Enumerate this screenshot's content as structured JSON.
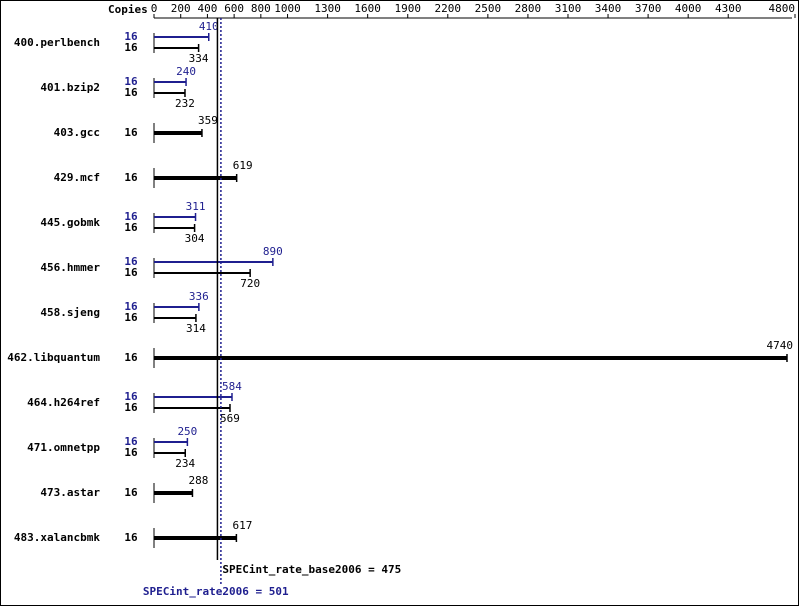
{
  "chart_data": {
    "type": "bar",
    "orientation": "horizontal",
    "copies_label": "Copies",
    "categories": [
      "400.perlbench",
      "401.bzip2",
      "403.gcc",
      "429.mcf",
      "445.gobmk",
      "456.hmmer",
      "458.sjeng",
      "462.libquantum",
      "464.h264ref",
      "471.omnetpp",
      "473.astar",
      "483.xalancbmk"
    ],
    "series": [
      {
        "color": "#1f1f8f",
        "values": [
          410,
          240,
          null,
          null,
          311,
          890,
          336,
          null,
          584,
          250,
          null,
          null
        ],
        "copies": [
          16,
          16,
          null,
          null,
          16,
          16,
          16,
          null,
          16,
          16,
          null,
          null
        ]
      },
      {
        "color": "#000000",
        "values": [
          334,
          232,
          359,
          619,
          304,
          720,
          314,
          4740,
          569,
          234,
          288,
          617
        ],
        "copies": [
          16,
          16,
          16,
          16,
          16,
          16,
          16,
          16,
          16,
          16,
          16,
          16
        ]
      }
    ],
    "xlim": [
      0,
      4800
    ],
    "xticks": [
      0,
      200,
      400,
      600,
      800,
      1000,
      1300,
      1600,
      1900,
      2200,
      2500,
      2800,
      3100,
      3400,
      3700,
      4000,
      4300,
      4800
    ],
    "base_line": {
      "value": 475,
      "label": "SPECint_rate_base2006 = 475",
      "color": "#000000"
    },
    "peak_line": {
      "value": 501,
      "label": "SPECint_rate2006 = 501",
      "color": "#1f1f8f"
    }
  }
}
